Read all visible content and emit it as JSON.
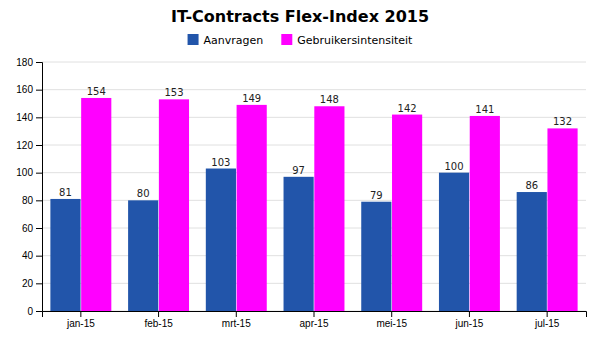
{
  "chart_data": {
    "type": "bar",
    "title": "IT-Contracts Flex-Index 2015",
    "categories": [
      "jan-15",
      "feb-15",
      "mrt-15",
      "apr-15",
      "mei-15",
      "jun-15",
      "jul-15"
    ],
    "series": [
      {
        "name": "Aanvragen",
        "color": "#2255AA",
        "values": [
          81,
          80,
          103,
          97,
          79,
          100,
          86
        ]
      },
      {
        "name": "Gebruikersintensiteit",
        "color": "#FF00FF",
        "values": [
          154,
          153,
          149,
          148,
          142,
          141,
          132
        ]
      }
    ],
    "ylim": [
      0,
      180
    ],
    "yticks": [
      0,
      20,
      40,
      60,
      80,
      100,
      120,
      140,
      160,
      180
    ],
    "grid": true,
    "legend": "top",
    "data_labels": true
  }
}
